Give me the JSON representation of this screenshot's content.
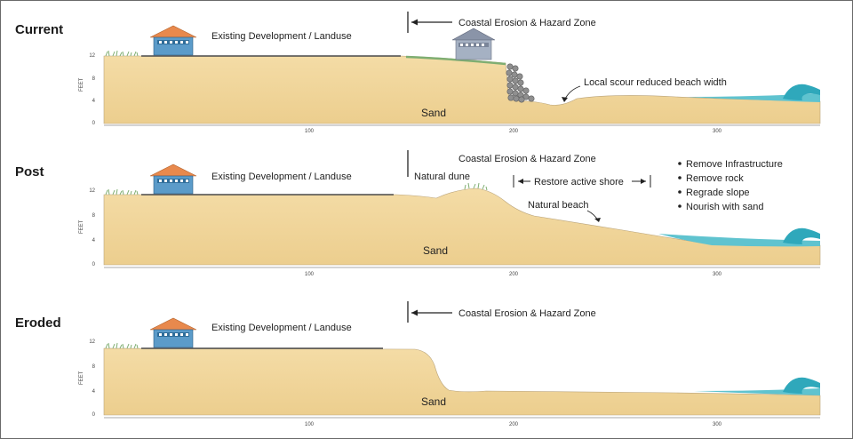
{
  "colors": {
    "sand": "#f2d79e",
    "sand_edge": "#9a9080",
    "water": "#5fc3cf",
    "water_dark": "#2a9fb3",
    "grass": "#7fae72",
    "roof_orange": "#e8894d",
    "house_blue": "#5b9bc9",
    "roof_gray": "#8a94a8",
    "house_gray": "#a5b1c3",
    "rock": "#8d8d8d"
  },
  "icons": [
    "house-icon",
    "rock-revetment-icon",
    "wave-icon",
    "grass-icon",
    "arrow-left-icon",
    "bullet-icon"
  ],
  "axis": {
    "y_label": "FEET",
    "y_ticks": [
      "12",
      "8",
      "4",
      "0"
    ],
    "x_ticks": [
      "100",
      "200",
      "300"
    ]
  },
  "panels": [
    {
      "title": "Current",
      "development_label": "Existing Development / Landuse",
      "hazard_label": "Coastal Erosion & Hazard Zone",
      "scour_label": "Local scour reduced beach width",
      "sand_label": "Sand"
    },
    {
      "title": "Post",
      "development_label": "Existing Development / Landuse",
      "hazard_label": "Coastal Erosion & Hazard Zone",
      "dune_label": "Natural dune",
      "restore_label": "Restore active shore",
      "beach_label": "Natural beach",
      "sand_label": "Sand",
      "actions": [
        "Remove Infrastructure",
        "Remove rock",
        "Regrade slope",
        "Nourish with sand"
      ]
    },
    {
      "title": "Eroded",
      "development_label": "Existing Development / Landuse",
      "hazard_label": "Coastal Erosion & Hazard Zone",
      "sand_label": "Sand"
    }
  ]
}
